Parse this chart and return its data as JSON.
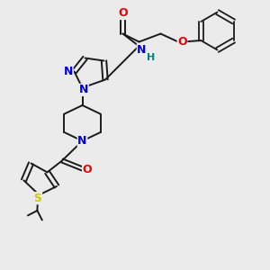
{
  "background_color": "#ebebeb",
  "bond_color": "#1a1a1a",
  "atom_colors": {
    "N": "#0000ee",
    "O": "#ee0000",
    "S": "#cccc00",
    "H": "#008080",
    "C": "#1a1a1a"
  },
  "figsize": [
    3.0,
    3.0
  ],
  "dpi": 100
}
